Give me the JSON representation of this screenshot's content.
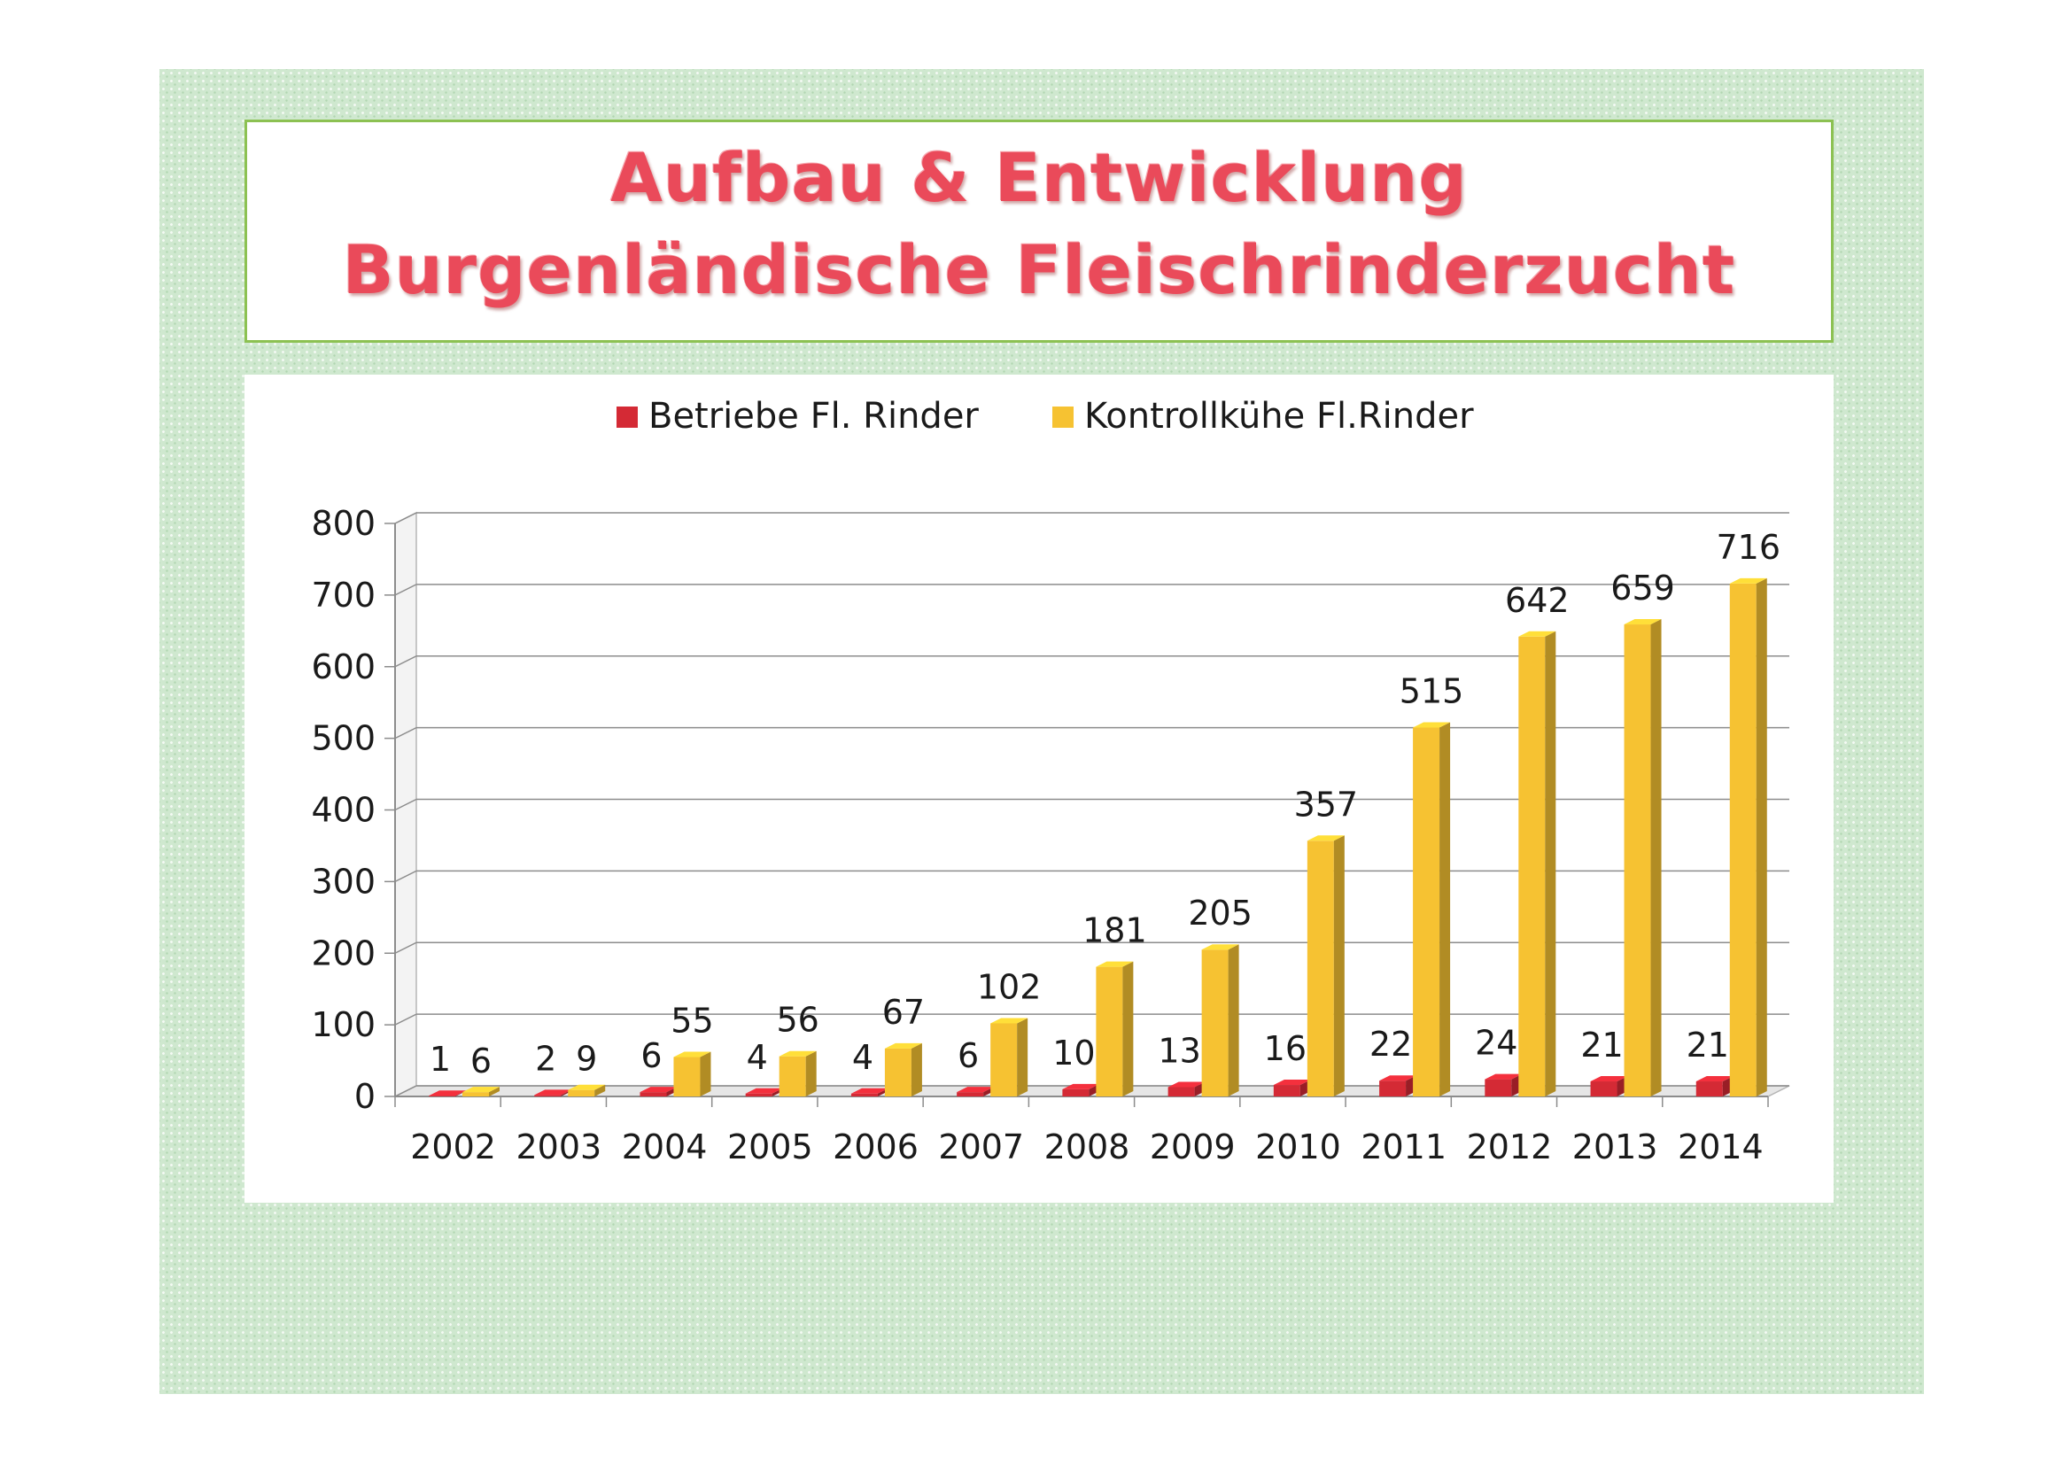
{
  "chart_data": {
    "type": "bar",
    "title": "Aufbau & Entwicklung",
    "subtitle": "Burgenländische Fleischrinderzucht",
    "categories": [
      "2002",
      "2003",
      "2004",
      "2005",
      "2006",
      "2007",
      "2008",
      "2009",
      "2010",
      "2011",
      "2012",
      "2013",
      "2014"
    ],
    "series": [
      {
        "name": "Betriebe Fl. Rinder",
        "color": "#d42a35",
        "values": [
          1,
          2,
          6,
          4,
          4,
          6,
          10,
          13,
          16,
          22,
          24,
          21,
          21
        ]
      },
      {
        "name": "Kontrollkühe Fl.Rinder",
        "color": "#f6c232",
        "values": [
          6,
          9,
          55,
          56,
          67,
          102,
          181,
          205,
          357,
          515,
          642,
          659,
          716
        ]
      }
    ],
    "yticks": [
      "0",
      "100",
      "200",
      "300",
      "400",
      "500",
      "600",
      "700",
      "800"
    ],
    "ylim": [
      0,
      800
    ],
    "grid": true,
    "legend_position": "top",
    "style": "3d-column"
  }
}
